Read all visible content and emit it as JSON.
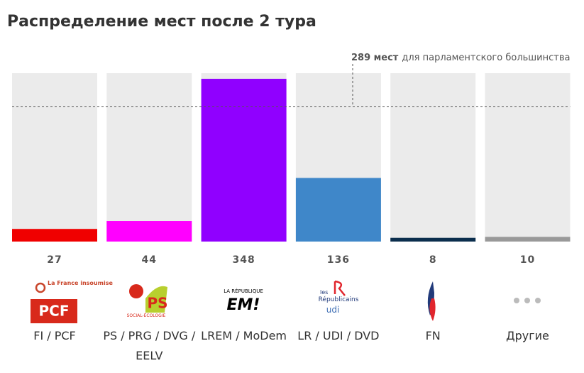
{
  "chart_data": {
    "type": "bar",
    "title": "Распределение мест после 2 тура",
    "categories": [
      "FI / PCF",
      "PS / PRG / DVG / EELV",
      "LREM / MoDem",
      "LR / UDI / DVD",
      "FN",
      "Другие"
    ],
    "values": [
      27,
      44,
      348,
      136,
      8,
      10
    ],
    "colors": [
      "#f00000",
      "#ff00ff",
      "#9000ff",
      "#3f87c9",
      "#0b2e4d",
      "#999999"
    ],
    "ylim": [
      0,
      360
    ],
    "threshold": {
      "value": 289,
      "label_bold": "289 мест",
      "label": "для парламентского большинства"
    },
    "logos": {
      "fi": "La France insoumise",
      "pcf": "PCF",
      "ps": "PS",
      "ps_sub": "SOCIAL-ÉCOLOGIE",
      "em_top": "LA RÉPUBLIQUE",
      "em": "EM!",
      "lr_les": "les",
      "lr": "Républicains",
      "udi": "udi"
    }
  }
}
